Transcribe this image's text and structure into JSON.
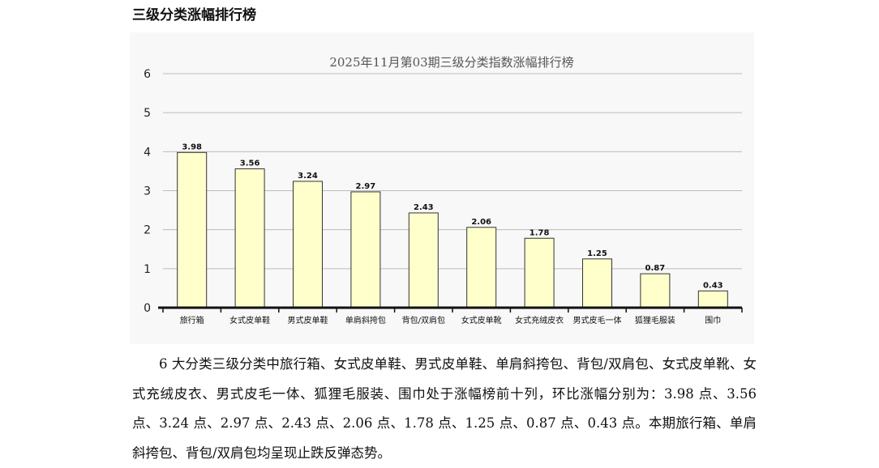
{
  "document": {
    "section_title": "三级分类涨幅排行榜",
    "paragraph": "6 大分类三级分类中旅行箱、女式皮单鞋、男式皮单鞋、单肩斜挎包、背包/双肩包、女式皮单靴、女式充绒皮衣、男式皮毛一体、狐狸毛服装、围巾处于涨幅榜前十列，环比涨幅分别为：3.98 点、3.56 点、3.24 点、2.97 点、2.43 点、2.06 点、1.78 点、1.25 点、0.87 点、0.43 点。本期旅行箱、单肩斜挎包、背包/双肩包均呈现止跌反弹态势。"
  },
  "chart_data": {
    "type": "bar",
    "title": "2025年11月第03期三级分类指数涨幅排行榜",
    "xlabel": "",
    "ylabel": "",
    "categories": [
      "旅行箱",
      "女式皮单鞋",
      "男式皮单鞋",
      "单肩斜挎包",
      "背包/双肩包",
      "女式皮单靴",
      "女式充绒皮衣",
      "男式皮毛一体",
      "狐狸毛服装",
      "围巾"
    ],
    "values": [
      3.98,
      3.56,
      3.24,
      2.97,
      2.43,
      2.06,
      1.78,
      1.25,
      0.87,
      0.43
    ],
    "value_labels": [
      "3.98",
      "3.56",
      "3.24",
      "2.97",
      "2.43",
      "2.06",
      "1.78",
      "1.25",
      "0.87",
      "0.43"
    ],
    "ylim": [
      0,
      6
    ],
    "yticks": [
      "0",
      "1",
      "2",
      "3",
      "4",
      "5",
      "6"
    ],
    "grid": true,
    "legend": "none",
    "bar_color": "#ffffcc",
    "bar_edge_color": "#333333",
    "grid_color": "#bbbbbb"
  }
}
